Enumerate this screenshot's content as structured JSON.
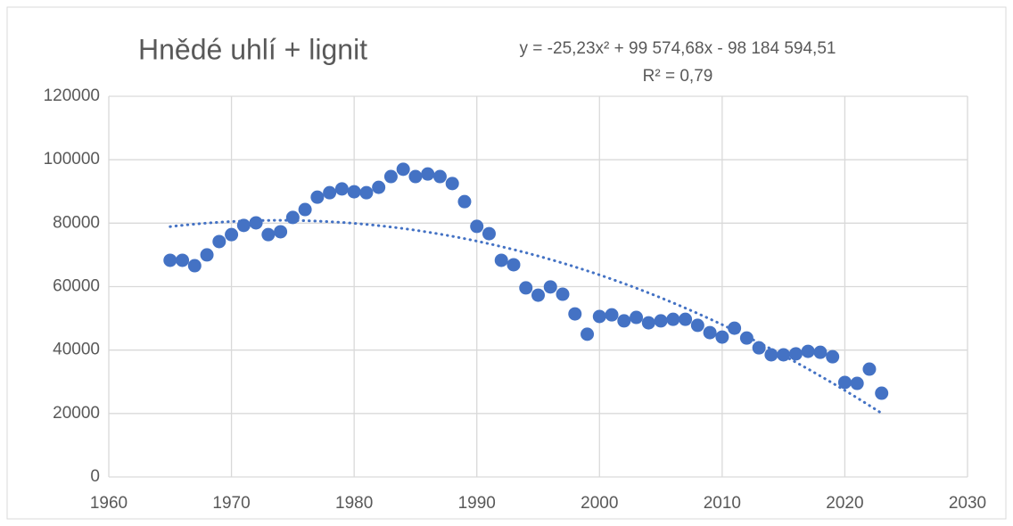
{
  "chart_data": {
    "type": "scatter",
    "title": "Hnědé uhlí + lignit",
    "annotations": [
      "y = -25,23x² + 99 574,68x - 98 184 594,51",
      "R² = 0,79"
    ],
    "trendline": {
      "type": "polynomial",
      "order": 2
    },
    "grid": true,
    "xlim": [
      1960,
      2030
    ],
    "xticks": [
      1960,
      1970,
      1980,
      1990,
      2000,
      2010,
      2020,
      2030
    ],
    "ylim": [
      0,
      120000
    ],
    "yticks": [
      0,
      20000,
      40000,
      60000,
      80000,
      100000,
      120000
    ],
    "series": [
      {
        "color": "#4472c4",
        "x": [
          1965,
          1966,
          1967,
          1968,
          1969,
          1970,
          1971,
          1972,
          1973,
          1974,
          1975,
          1976,
          1977,
          1978,
          1979,
          1980,
          1981,
          1982,
          1983,
          1984,
          1985,
          1986,
          1987,
          1988,
          1989,
          1990,
          1991,
          1992,
          1993,
          1994,
          1995,
          1996,
          1997,
          1998,
          1999,
          2000,
          2001,
          2002,
          2003,
          2004,
          2005,
          2006,
          2007,
          2008,
          2009,
          2010,
          2011,
          2012,
          2013,
          2014,
          2015,
          2016,
          2017,
          2018,
          2019,
          2020,
          2021,
          2022,
          2023
        ],
        "values": [
          68300,
          68300,
          66600,
          70000,
          74200,
          76400,
          79300,
          80100,
          76400,
          77300,
          81800,
          84300,
          88200,
          89600,
          90800,
          89900,
          89600,
          91300,
          94700,
          97000,
          94700,
          95500,
          94700,
          92500,
          86800,
          79000,
          76700,
          68300,
          66900,
          59600,
          57300,
          59900,
          57600,
          51400,
          45000,
          50600,
          51100,
          49200,
          50300,
          48600,
          49200,
          49700,
          49700,
          47800,
          45500,
          44100,
          46900,
          43800,
          40700,
          38500,
          38500,
          38800,
          39600,
          39300,
          37900,
          29800,
          29500,
          34000,
          26400
        ]
      }
    ]
  }
}
